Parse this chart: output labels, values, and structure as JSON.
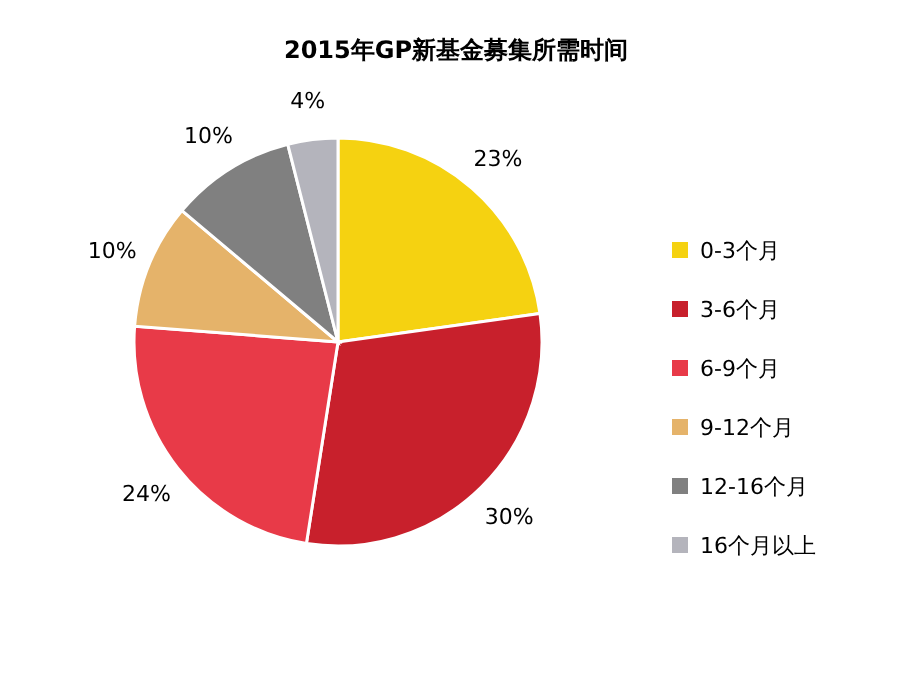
{
  "chart_data": {
    "type": "pie",
    "title": "2015年GP新基金募集所需时间",
    "categories": [
      "0-3个月",
      "3-6个月",
      "6-9个月",
      "9-12个月",
      "12-16个月",
      "16个月以上"
    ],
    "values": [
      23,
      30,
      24,
      10,
      10,
      4
    ],
    "colors": [
      "#f5d211",
      "#c8202c",
      "#e83a48",
      "#e5b36a",
      "#808080",
      "#b4b4bc"
    ],
    "value_labels": [
      "23%",
      "30%",
      "24%",
      "10%",
      "10%",
      "4%"
    ],
    "legend": "right"
  }
}
